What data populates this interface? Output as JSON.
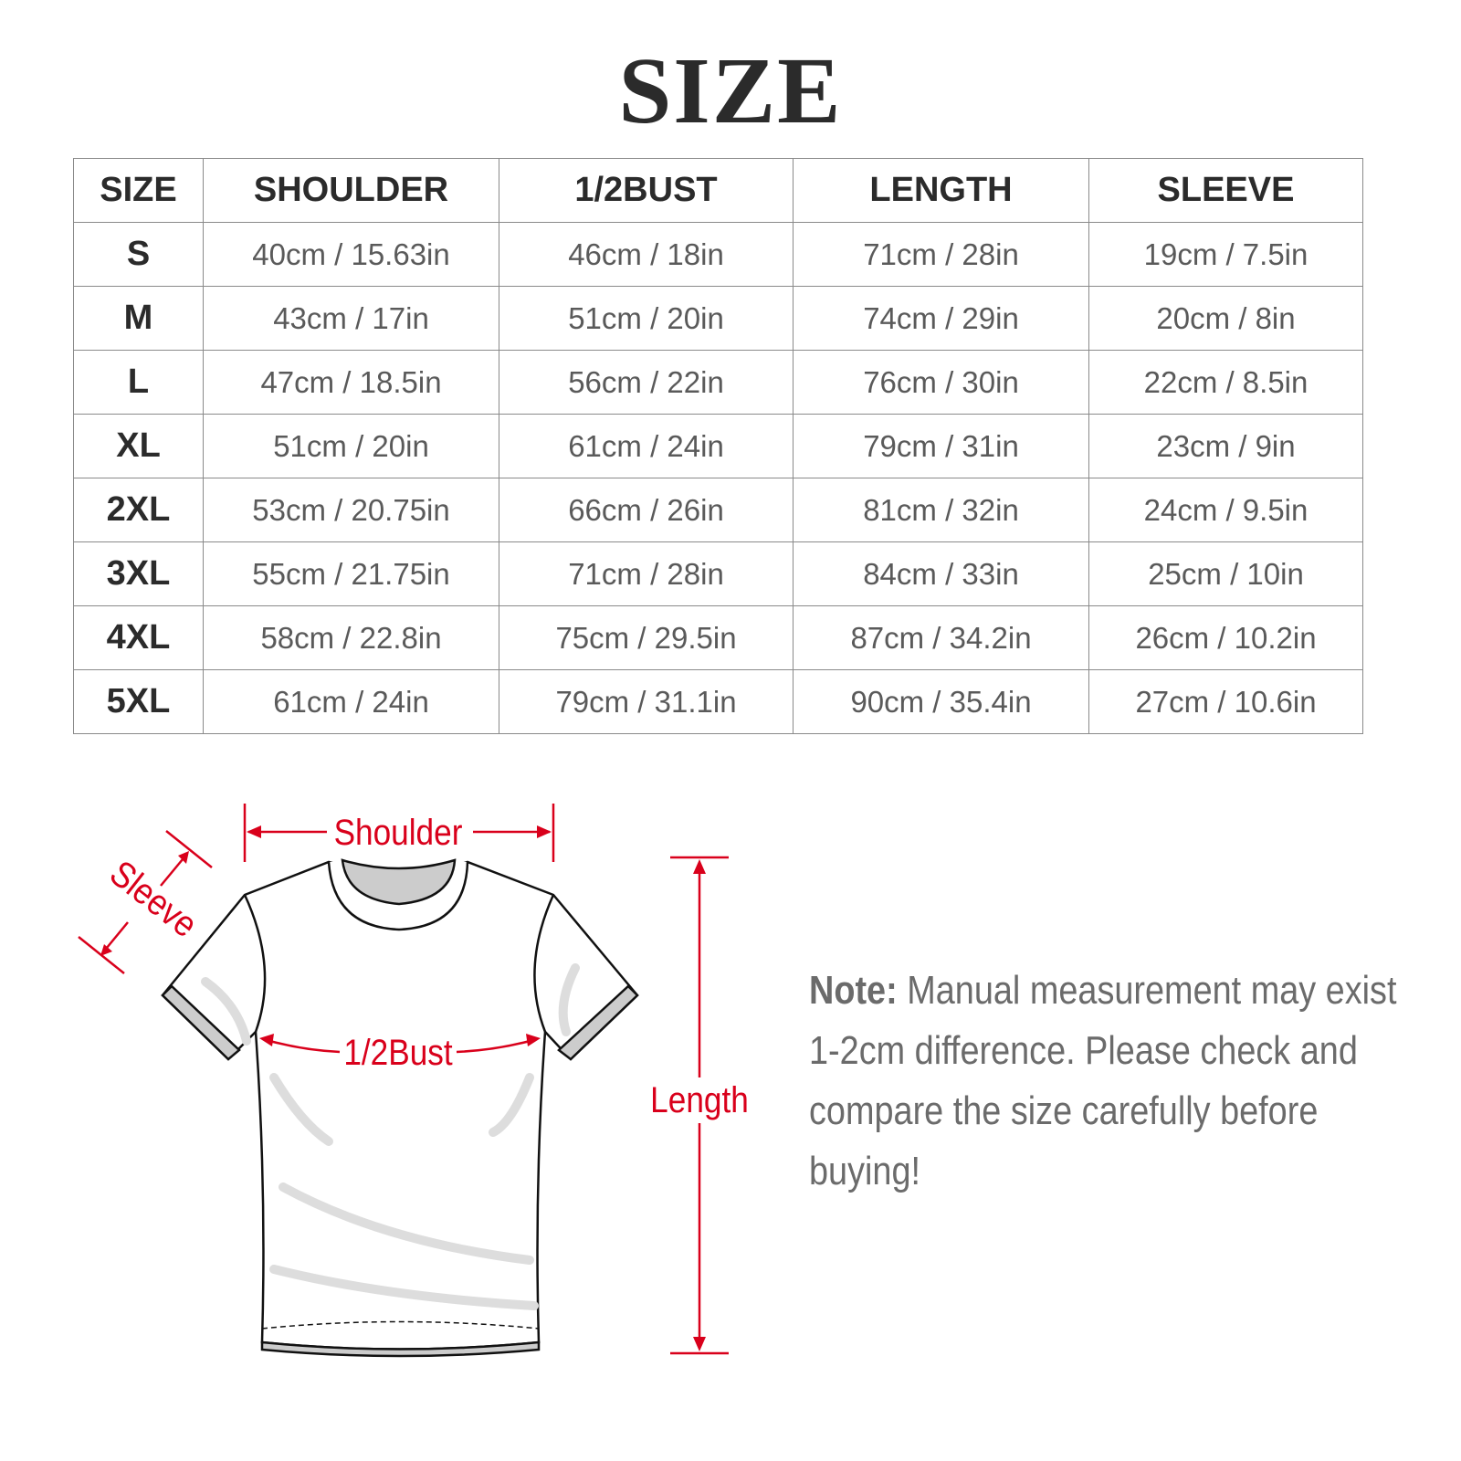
{
  "title": "SIZE",
  "table": {
    "headers": [
      "SIZE",
      "SHOULDER",
      "1/2BUST",
      "LENGTH",
      "SLEEVE"
    ],
    "rows": [
      [
        "S",
        "40cm / 15.63in",
        "46cm / 18in",
        "71cm / 28in",
        "19cm / 7.5in"
      ],
      [
        "M",
        "43cm / 17in",
        "51cm / 20in",
        "74cm / 29in",
        "20cm / 8in"
      ],
      [
        "L",
        "47cm / 18.5in",
        "56cm / 22in",
        "76cm / 30in",
        "22cm / 8.5in"
      ],
      [
        "XL",
        "51cm / 20in",
        "61cm / 24in",
        "79cm / 31in",
        "23cm / 9in"
      ],
      [
        "2XL",
        "53cm / 20.75in",
        "66cm / 26in",
        "81cm / 32in",
        "24cm / 9.5in"
      ],
      [
        "3XL",
        "55cm / 21.75in",
        "71cm / 28in",
        "84cm / 33in",
        "25cm / 10in"
      ],
      [
        "4XL",
        "58cm / 22.8in",
        "75cm / 29.5in",
        "87cm / 34.2in",
        "26cm / 10.2in"
      ],
      [
        "5XL",
        "61cm / 24in",
        "79cm / 31.1in",
        "90cm / 35.4in",
        "27cm / 10.6in"
      ]
    ]
  },
  "diagram": {
    "shoulder_label": "Shoulder",
    "sleeve_label": "Sleeve",
    "bust_label": "1/2Bust",
    "length_label": "Length",
    "accent_color": "#d9001b"
  },
  "note": {
    "prefix": "Note:",
    "text": " Manual measurement may exist 1-2cm difference. Please check and compare the size carefully before buying!"
  }
}
